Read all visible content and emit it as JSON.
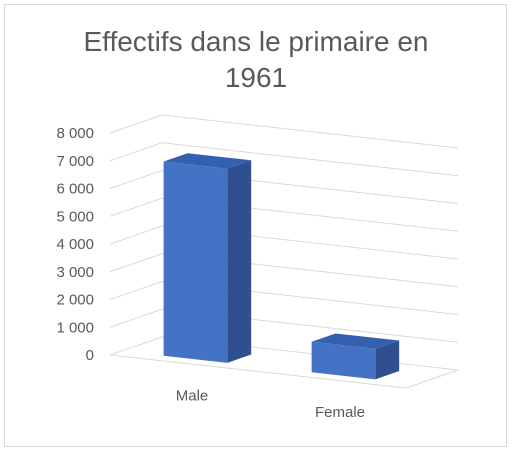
{
  "chart_data": {
    "type": "bar",
    "title": "Effectifs dans le primaire en 1961",
    "title_lines": [
      "Effectifs dans le primaire en",
      "1961"
    ],
    "categories": [
      "Male",
      "Female"
    ],
    "values": [
      7000,
      1100
    ],
    "ylim": [
      0,
      8000
    ],
    "yticks": [
      0,
      1000,
      2000,
      3000,
      4000,
      5000,
      6000,
      7000,
      8000
    ],
    "ytick_labels": [
      "0",
      "1 000",
      "2 000",
      "3 000",
      "4 000",
      "5 000",
      "6 000",
      "7 000",
      "8 000"
    ],
    "xlabel": "",
    "ylabel": "",
    "grid": true,
    "style": "3d-column",
    "colors": {
      "bar_front": "#4472c4",
      "bar_top": "#3560b0",
      "bar_side": "#2f4f8f",
      "grid": "#d9d9d9",
      "text": "#595959"
    }
  }
}
